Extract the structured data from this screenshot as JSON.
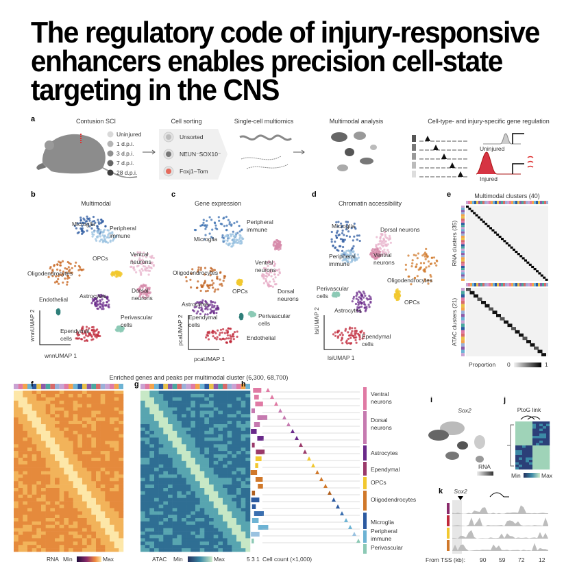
{
  "title": [
    "The regulatory code of injury-responsive",
    "enhancers enables precision cell-state",
    "targeting in the CNS"
  ],
  "panel_a": {
    "letter": "a",
    "mouse": {
      "heading": "Contusion SCI",
      "legend": [
        "Uninjured",
        "1 d.p.i.",
        "3 d.p.i.",
        "7 d.p.i.",
        "28 d.p.i."
      ]
    },
    "sorting": {
      "heading": "Cell sorting",
      "options": [
        "Unsorted",
        "NEUN⁻SOX10⁻",
        "Foxj1–Tom"
      ]
    },
    "multiomics": {
      "heading": "Single-cell multiomics"
    },
    "analysis": {
      "heading": "Multimodal analysis"
    },
    "regulation": {
      "heading": "Cell-type- and injury-specific gene regulation",
      "states": [
        "Uninjured",
        "Injured"
      ]
    }
  },
  "panel_b": {
    "letter": "b",
    "heading": "Multimodal",
    "labels": [
      [
        "Microglia"
      ],
      [
        "Peripheral",
        "immune"
      ],
      [
        "OPCs"
      ],
      [
        "Ventral",
        "neurons"
      ],
      [
        "Oligodendrocytes"
      ],
      [
        "Dorsal",
        "neurons"
      ],
      [
        "Astrocytes"
      ],
      [
        "Endothelial"
      ],
      [
        "Perivascular",
        "cells"
      ],
      [
        "Ependymal",
        "cells"
      ]
    ],
    "y_axis": "wnnUMAP 2",
    "x_axis": "wnnUMAP 1"
  },
  "panel_c": {
    "letter": "c",
    "heading": "Gene expression",
    "labels": [
      [
        "Peripheral",
        "immune"
      ],
      [
        "Microglia"
      ],
      [
        "Ventral",
        "neurons"
      ],
      [
        "Oligodendrocytes"
      ],
      [
        "OPCs"
      ],
      [
        "Dorsal",
        "neurons"
      ],
      [
        "Astrocytes"
      ],
      [
        "Perivascular",
        "cells"
      ],
      [
        "Ependymal",
        "cells"
      ],
      [
        "Endothelial"
      ]
    ],
    "y_axis": "pcaUMAP 2",
    "x_axis": "pcaUMAP 1"
  },
  "panel_d": {
    "letter": "d",
    "heading": "Chromatin accessibility",
    "labels": [
      [
        "Microglia"
      ],
      [
        "Dorsal neurons"
      ],
      [
        "Peripheral",
        "immune"
      ],
      [
        "Ventral",
        "neurons"
      ],
      [
        "Oligodendrocytes"
      ],
      [
        "Perivascular",
        "cells"
      ],
      [
        "Astrocytes"
      ],
      [
        "OPCs"
      ],
      [
        "Ependymal",
        "cells"
      ]
    ],
    "y_axis": "lsiUMAP 2",
    "x_axis": "lsiUMAP 1"
  },
  "panel_e": {
    "letter": "e",
    "heading": "Multimodal clusters (40)",
    "rna_axis": "RNA clusters (35)",
    "atac_axis": "ATAC clusters (21)",
    "scale": {
      "label": "Proportion",
      "min": "0",
      "max": "1"
    }
  },
  "panels_fgh_heading": "Enriched genes and peaks per multimodal cluster (6,300, 68,700)",
  "panel_f": {
    "letter": "f",
    "modality": "RNA",
    "min": "Min",
    "max": "Max"
  },
  "panel_g": {
    "letter": "g",
    "modality": "ATAC",
    "min": "Min",
    "max": "Max"
  },
  "panel_h": {
    "letter": "h",
    "labels": [
      [
        "Ventral",
        "neurons"
      ],
      [
        "Dorsal",
        "neurons"
      ],
      [
        "Astrocytes"
      ],
      [
        "Ependymal"
      ],
      [
        "OPCs"
      ],
      [
        "Oligodendrocytes"
      ],
      [
        "Microglia"
      ],
      [
        "Peripheral",
        "immune"
      ],
      [
        "Perivascular"
      ]
    ],
    "count_ticks": [
      "5",
      "3",
      "1"
    ],
    "count_label": "Cell count (×1,000)"
  },
  "panel_i": {
    "letter": "i",
    "gene": "Sox2",
    "scale": "RNA"
  },
  "panel_j": {
    "letter": "j",
    "heading": "PtoG link",
    "min": "Min",
    "max": "Max"
  },
  "panel_k": {
    "letter": "k",
    "gene": "Sox2",
    "axis_label": "From TSS (kb):",
    "distances": [
      "90",
      "59",
      "72",
      "12"
    ]
  }
}
